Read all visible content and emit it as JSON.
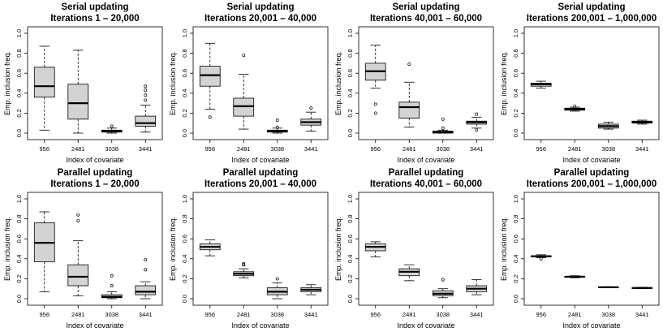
{
  "chart_data": [
    {
      "type": "boxplot",
      "title": [
        "Serial updating",
        "Iterations 1 – 20,000"
      ],
      "xlabel": "Index of covariate",
      "ylabel": "Emp. inclusion freq.",
      "ylim": [
        0,
        1
      ],
      "yticks": [
        "0.0",
        "0.2",
        "0.4",
        "0.6",
        "0.8",
        "1.0"
      ],
      "categories": [
        "956",
        "2481",
        "3038",
        "3441"
      ],
      "boxes": [
        {
          "category": "956",
          "whisker_low": 0.03,
          "q1": 0.36,
          "median": 0.47,
          "q3": 0.66,
          "whisker_high": 0.87,
          "outliers": []
        },
        {
          "category": "2481",
          "whisker_low": 0.0,
          "q1": 0.14,
          "median": 0.3,
          "q3": 0.49,
          "whisker_high": 0.83,
          "outliers": []
        },
        {
          "category": "3038",
          "whisker_low": 0.0,
          "q1": 0.01,
          "median": 0.02,
          "q3": 0.03,
          "whisker_high": 0.05,
          "outliers": [
            0.07
          ]
        },
        {
          "category": "3441",
          "whisker_low": 0.01,
          "q1": 0.07,
          "median": 0.1,
          "q3": 0.17,
          "whisker_high": 0.28,
          "outliers": [
            0.33,
            0.38,
            0.43,
            0.47
          ]
        }
      ]
    },
    {
      "type": "boxplot",
      "title": [
        "Serial updating",
        "Iterations 20,001 – 40,000"
      ],
      "xlabel": "Index of covariate",
      "ylabel": "Emp. inclusion freq.",
      "ylim": [
        0,
        1
      ],
      "yticks": [
        "0.0",
        "0.2",
        "0.4",
        "0.6",
        "0.8",
        "1.0"
      ],
      "categories": [
        "956",
        "2481",
        "3038",
        "3441"
      ],
      "boxes": [
        {
          "category": "956",
          "whisker_low": 0.24,
          "q1": 0.47,
          "median": 0.58,
          "q3": 0.67,
          "whisker_high": 0.9,
          "outliers": [
            0.16
          ]
        },
        {
          "category": "2481",
          "whisker_low": 0.04,
          "q1": 0.17,
          "median": 0.27,
          "q3": 0.35,
          "whisker_high": 0.59,
          "outliers": [
            0.78
          ]
        },
        {
          "category": "3038",
          "whisker_low": 0.0,
          "q1": 0.01,
          "median": 0.02,
          "q3": 0.03,
          "whisker_high": 0.05,
          "outliers": [
            0.13,
            0.06
          ]
        },
        {
          "category": "3441",
          "whisker_low": 0.02,
          "q1": 0.08,
          "median": 0.11,
          "q3": 0.14,
          "whisker_high": 0.21,
          "outliers": [
            0.25
          ]
        }
      ]
    },
    {
      "type": "boxplot",
      "title": [
        "Serial updating",
        "Iterations 40,001 – 60,000"
      ],
      "xlabel": "Index of covariate",
      "ylabel": "Emp. inclusion freq.",
      "ylim": [
        0,
        1
      ],
      "yticks": [
        "0.0",
        "0.2",
        "0.4",
        "0.6",
        "0.8",
        "1.0"
      ],
      "categories": [
        "956",
        "2481",
        "3038",
        "3441"
      ],
      "boxes": [
        {
          "category": "956",
          "whisker_low": 0.45,
          "q1": 0.53,
          "median": 0.62,
          "q3": 0.7,
          "whisker_high": 0.88,
          "outliers": [
            0.29,
            0.2
          ]
        },
        {
          "category": "2481",
          "whisker_low": 0.06,
          "q1": 0.15,
          "median": 0.26,
          "q3": 0.31,
          "whisker_high": 0.51,
          "outliers": [
            0.69
          ]
        },
        {
          "category": "3038",
          "whisker_low": 0.0,
          "q1": 0.0,
          "median": 0.01,
          "q3": 0.02,
          "whisker_high": 0.03,
          "outliers": [
            0.05,
            0.14
          ]
        },
        {
          "category": "3441",
          "whisker_low": 0.05,
          "q1": 0.09,
          "median": 0.11,
          "q3": 0.12,
          "whisker_high": 0.16,
          "outliers": [
            0.03,
            0.19
          ]
        }
      ]
    },
    {
      "type": "boxplot",
      "title": [
        "Serial updating",
        "Iterations 200,001 – 1,000,000"
      ],
      "xlabel": "Index of covariate",
      "ylabel": "Emp. inclusion freq.",
      "ylim": [
        0,
        1
      ],
      "yticks": [
        "0.0",
        "0.2",
        "0.4",
        "0.6",
        "0.8",
        "1.0"
      ],
      "categories": [
        "956",
        "2481",
        "3038",
        "3441"
      ],
      "boxes": [
        {
          "category": "956",
          "whisker_low": 0.45,
          "q1": 0.47,
          "median": 0.49,
          "q3": 0.5,
          "whisker_high": 0.52,
          "outliers": []
        },
        {
          "category": "2481",
          "whisker_low": 0.22,
          "q1": 0.23,
          "median": 0.24,
          "q3": 0.25,
          "whisker_high": 0.26,
          "outliers": [
            0.27
          ]
        },
        {
          "category": "3038",
          "whisker_low": 0.04,
          "q1": 0.05,
          "median": 0.07,
          "q3": 0.09,
          "whisker_high": 0.11,
          "outliers": []
        },
        {
          "category": "3441",
          "whisker_low": 0.09,
          "q1": 0.1,
          "median": 0.11,
          "q3": 0.12,
          "whisker_high": 0.13,
          "outliers": []
        }
      ]
    },
    {
      "type": "boxplot",
      "title": [
        "Parallel updating",
        "Iterations 1 – 20,000"
      ],
      "xlabel": "Index of covariate",
      "ylabel": "Emp. inclusion freq.",
      "ylim": [
        0,
        1
      ],
      "yticks": [
        "0.0",
        "0.2",
        "0.4",
        "0.6",
        "0.8",
        "1.0"
      ],
      "categories": [
        "956",
        "2481",
        "3038",
        "3441"
      ],
      "boxes": [
        {
          "category": "956",
          "whisker_low": 0.07,
          "q1": 0.37,
          "median": 0.56,
          "q3": 0.76,
          "whisker_high": 0.87,
          "outliers": []
        },
        {
          "category": "2481",
          "whisker_low": 0.03,
          "q1": 0.13,
          "median": 0.22,
          "q3": 0.34,
          "whisker_high": 0.58,
          "outliers": [
            0.78,
            0.84
          ]
        },
        {
          "category": "3038",
          "whisker_low": 0.0,
          "q1": 0.01,
          "median": 0.02,
          "q3": 0.04,
          "whisker_high": 0.07,
          "outliers": [
            0.13,
            0.23
          ]
        },
        {
          "category": "3441",
          "whisker_low": 0.0,
          "q1": 0.04,
          "median": 0.07,
          "q3": 0.13,
          "whisker_high": 0.17,
          "outliers": [
            0.29,
            0.39
          ]
        }
      ]
    },
    {
      "type": "boxplot",
      "title": [
        "Parallel updating",
        "Iterations 20,001 – 40,000"
      ],
      "xlabel": "Index of covariate",
      "ylabel": "Emp. inclusion freq.",
      "ylim": [
        0,
        1
      ],
      "yticks": [
        "0.0",
        "0.2",
        "0.4",
        "0.6",
        "0.8",
        "1.0"
      ],
      "categories": [
        "956",
        "2481",
        "3038",
        "3441"
      ],
      "boxes": [
        {
          "category": "956",
          "whisker_low": 0.43,
          "q1": 0.49,
          "median": 0.52,
          "q3": 0.55,
          "whisker_high": 0.59,
          "outliers": []
        },
        {
          "category": "2481",
          "whisker_low": 0.21,
          "q1": 0.23,
          "median": 0.25,
          "q3": 0.27,
          "whisker_high": 0.3,
          "outliers": [
            0.34,
            0.35
          ]
        },
        {
          "category": "3038",
          "whisker_low": 0.0,
          "q1": 0.04,
          "median": 0.07,
          "q3": 0.11,
          "whisker_high": 0.16,
          "outliers": [
            0.2
          ]
        },
        {
          "category": "3441",
          "whisker_low": 0.04,
          "q1": 0.07,
          "median": 0.09,
          "q3": 0.11,
          "whisker_high": 0.14,
          "outliers": []
        }
      ]
    },
    {
      "type": "boxplot",
      "title": [
        "Parallel updating",
        "Iterations 40,001 – 60,000"
      ],
      "xlabel": "Index of covariate",
      "ylabel": "Emp. inclusion freq.",
      "ylim": [
        0,
        1
      ],
      "yticks": [
        "0.0",
        "0.2",
        "0.4",
        "0.6",
        "0.8",
        "1.0"
      ],
      "categories": [
        "956",
        "2481",
        "3038",
        "3441"
      ],
      "boxes": [
        {
          "category": "956",
          "whisker_low": 0.42,
          "q1": 0.48,
          "median": 0.52,
          "q3": 0.55,
          "whisker_high": 0.57,
          "outliers": []
        },
        {
          "category": "2481",
          "whisker_low": 0.18,
          "q1": 0.23,
          "median": 0.27,
          "q3": 0.3,
          "whisker_high": 0.34,
          "outliers": []
        },
        {
          "category": "3038",
          "whisker_low": 0.01,
          "q1": 0.03,
          "median": 0.05,
          "q3": 0.08,
          "whisker_high": 0.1,
          "outliers": [
            0.19
          ]
        },
        {
          "category": "3441",
          "whisker_low": 0.04,
          "q1": 0.07,
          "median": 0.1,
          "q3": 0.13,
          "whisker_high": 0.19,
          "outliers": []
        }
      ]
    },
    {
      "type": "boxplot",
      "title": [
        "Parallel updating",
        "Iterations 200,001 – 1,000,000"
      ],
      "xlabel": "Index of covariate",
      "ylabel": "Emp. inclusion freq.",
      "ylim": [
        0,
        1
      ],
      "yticks": [
        "0.0",
        "0.2",
        "0.4",
        "0.6",
        "0.8",
        "1.0"
      ],
      "categories": [
        "956",
        "2481",
        "3038",
        "3441"
      ],
      "boxes": [
        {
          "category": "956",
          "whisker_low": 0.41,
          "q1": 0.42,
          "median": 0.425,
          "q3": 0.43,
          "whisker_high": 0.44,
          "outliers": [
            0.4
          ]
        },
        {
          "category": "2481",
          "whisker_low": 0.21,
          "q1": 0.215,
          "median": 0.22,
          "q3": 0.225,
          "whisker_high": 0.23,
          "outliers": []
        },
        {
          "category": "3038",
          "whisker_low": 0.11,
          "q1": 0.112,
          "median": 0.115,
          "q3": 0.118,
          "whisker_high": 0.12,
          "outliers": []
        },
        {
          "category": "3441",
          "whisker_low": 0.1,
          "q1": 0.105,
          "median": 0.108,
          "q3": 0.11,
          "whisker_high": 0.115,
          "outliers": []
        }
      ]
    }
  ],
  "colors": {
    "box_fill": "#d3d3d3",
    "line": "#000000",
    "background": "#ffffff"
  }
}
